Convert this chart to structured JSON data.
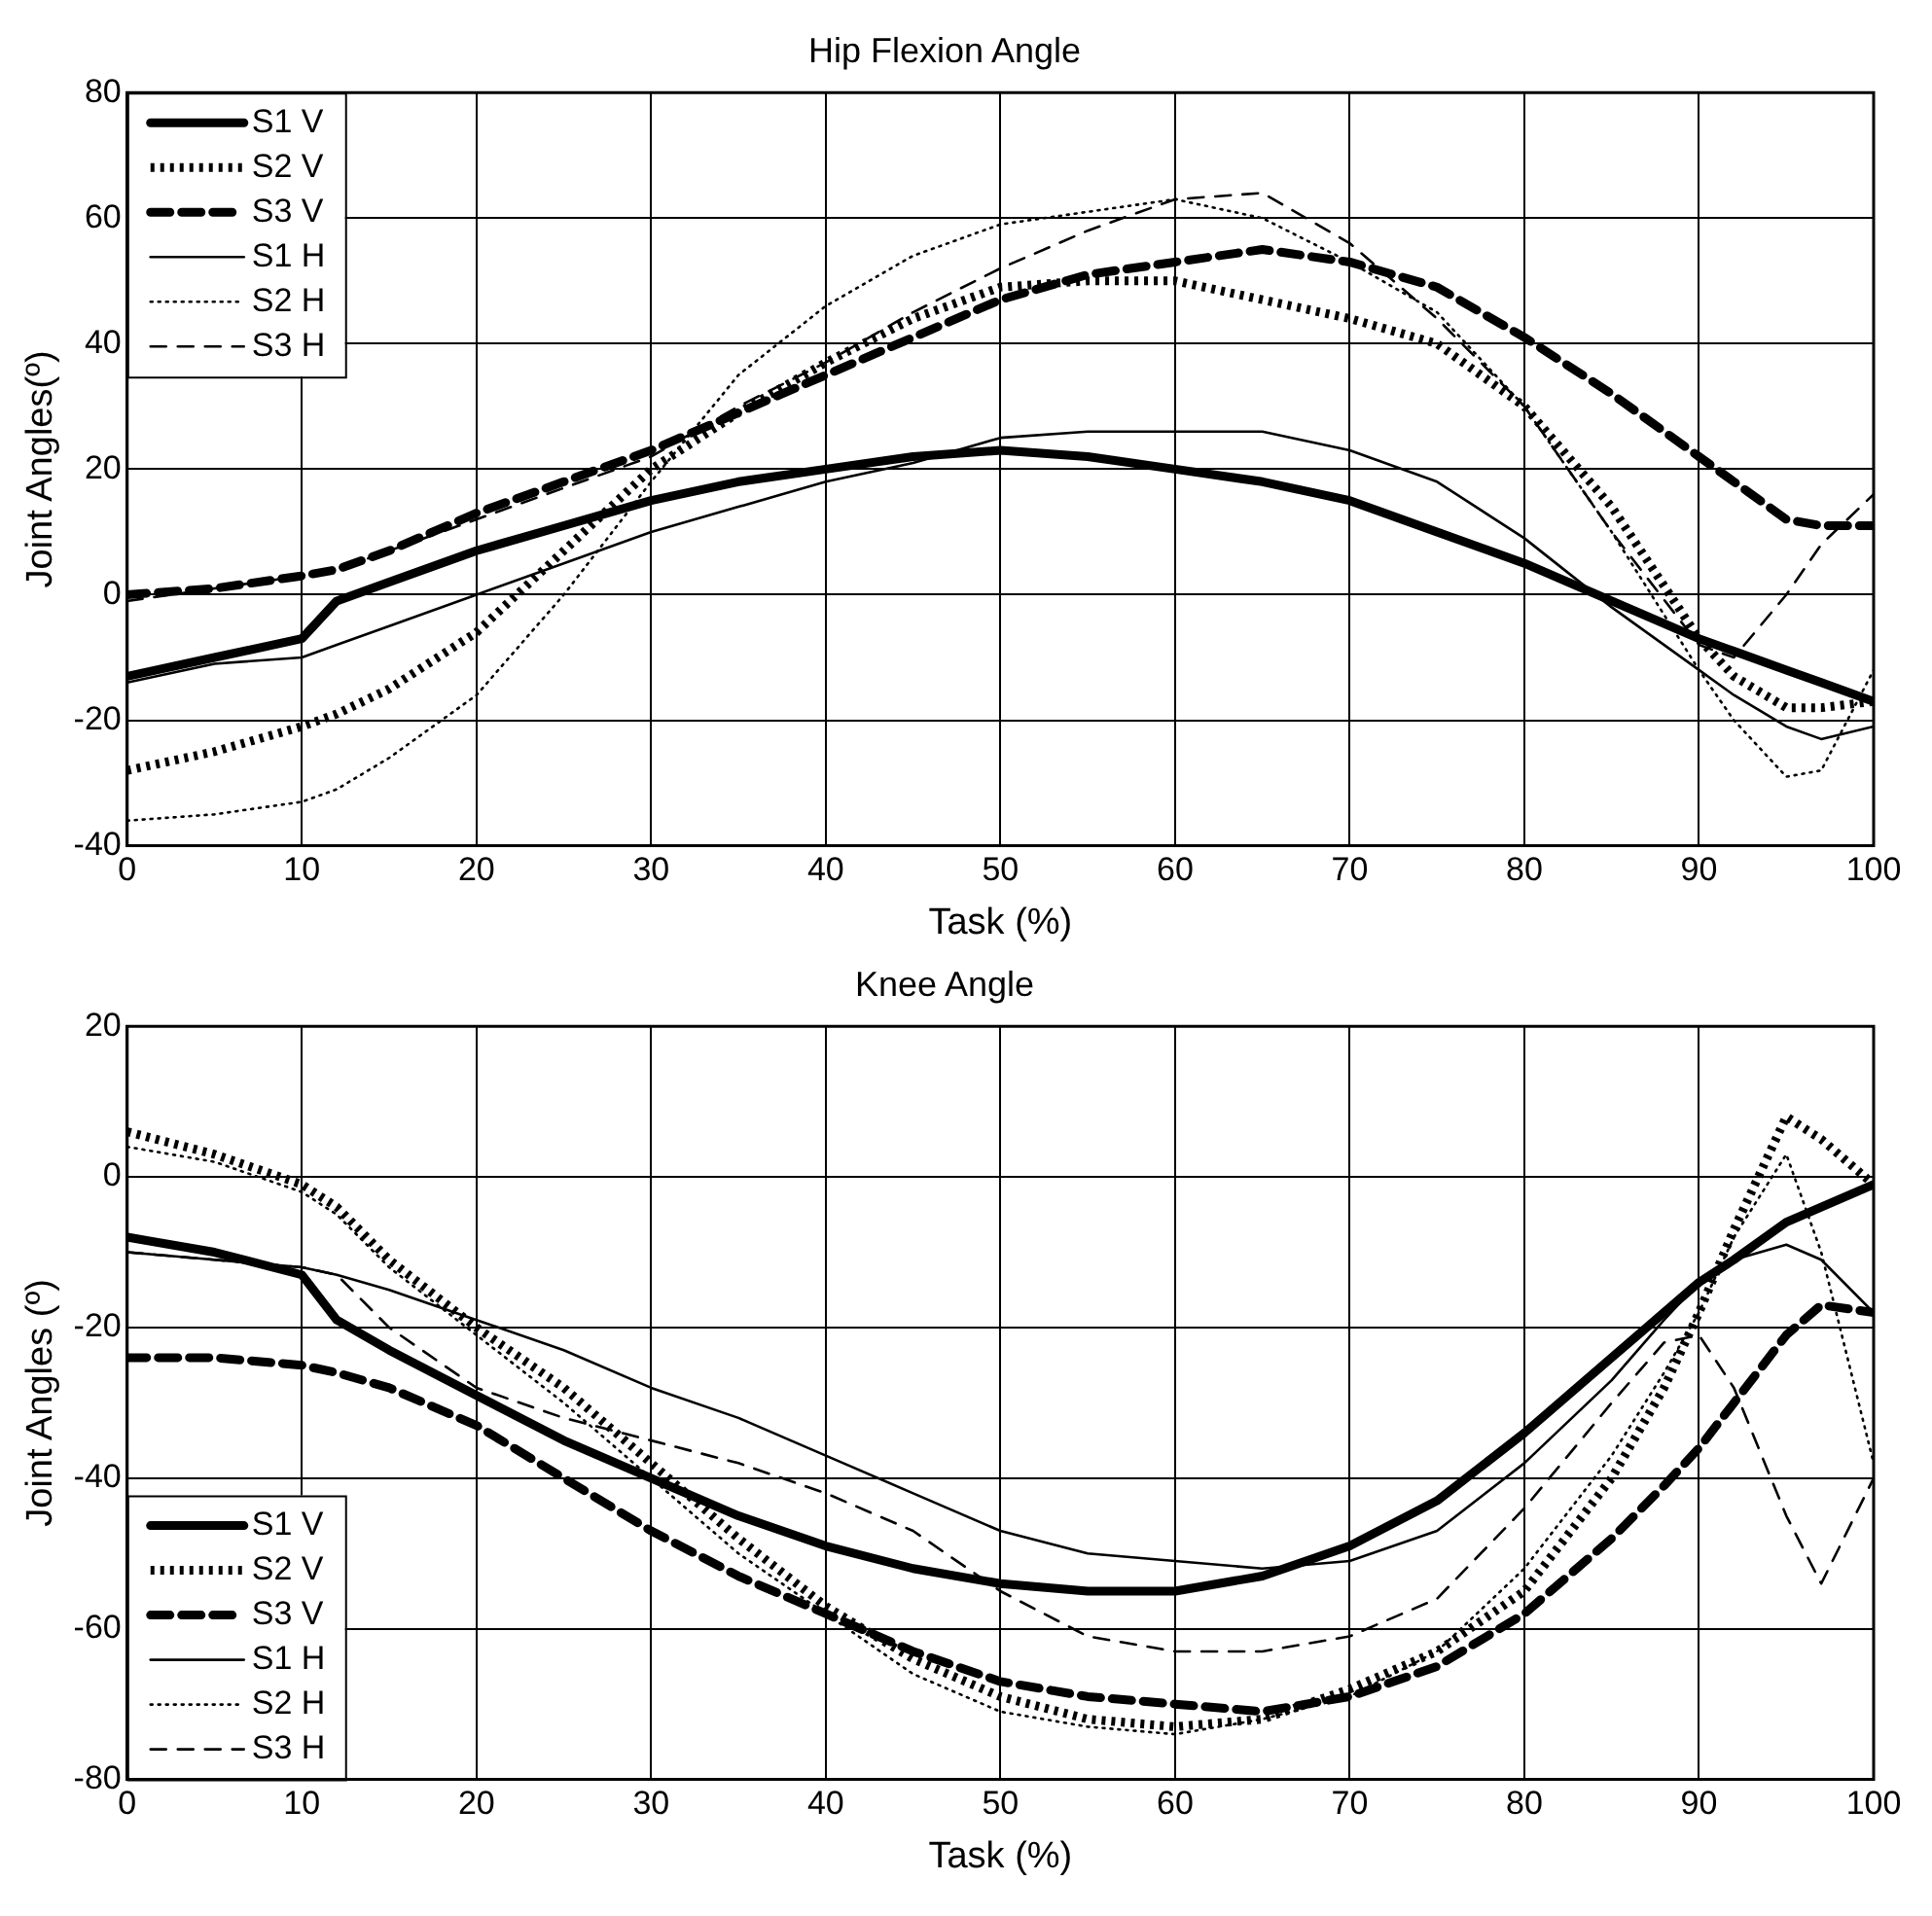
{
  "chart_data": [
    {
      "type": "line",
      "title": "Hip Flexion Angle",
      "xlabel": "Task (%)",
      "ylabel": "Joint Angles(º)",
      "x": [
        0,
        5,
        10,
        12,
        15,
        20,
        25,
        30,
        35,
        40,
        45,
        50,
        55,
        60,
        65,
        70,
        75,
        80,
        85,
        90,
        92,
        95,
        97,
        100
      ],
      "xlim": [
        0,
        100
      ],
      "xticks": [
        0,
        10,
        20,
        30,
        40,
        50,
        60,
        70,
        80,
        90,
        100
      ],
      "ylim": [
        -40,
        80
      ],
      "yticks": [
        -40,
        -20,
        0,
        20,
        40,
        60,
        80
      ],
      "grid": true,
      "legend": "top left",
      "series": [
        {
          "name": "S1 V",
          "color": "#000000",
          "line_style": "solid",
          "values": [
            -13,
            -10,
            -7,
            -1,
            2,
            7,
            11,
            15,
            18,
            20,
            22,
            23,
            22,
            20,
            18,
            15,
            10,
            5,
            -1,
            -7,
            -9,
            -12,
            -14,
            -17
          ]
        },
        {
          "name": "S2 V",
          "color": "#000000",
          "line_style": "dotted",
          "values": [
            -28,
            -25,
            -21,
            -19,
            -15,
            -6,
            7,
            20,
            29,
            37,
            44,
            49,
            50,
            50,
            47,
            44,
            40,
            30,
            14,
            -7,
            -13,
            -18,
            -18,
            -17
          ]
        },
        {
          "name": "S3 V",
          "color": "#000000",
          "line_style": "dashed",
          "values": [
            0,
            1,
            3,
            4,
            7,
            13,
            18,
            23,
            29,
            35,
            41,
            47,
            51,
            53,
            55,
            53,
            49,
            41,
            32,
            22,
            18,
            12,
            11,
            11
          ]
        },
        {
          "name": "S1 H",
          "color": "#000000",
          "line_style": "solid",
          "values": [
            -14,
            -11,
            -10,
            -8,
            -5,
            0,
            5,
            10,
            14,
            18,
            21,
            25,
            26,
            26,
            26,
            23,
            18,
            9,
            -2,
            -12,
            -16,
            -21,
            -23,
            -21
          ]
        },
        {
          "name": "S2 H",
          "color": "#000000",
          "line_style": "dotted",
          "values": [
            -36,
            -35,
            -33,
            -31,
            -26,
            -16,
            0,
            18,
            35,
            46,
            54,
            59,
            61,
            63,
            60,
            53,
            45,
            30,
            10,
            -12,
            -20,
            -29,
            -28,
            -12
          ]
        },
        {
          "name": "S3 H",
          "color": "#000000",
          "line_style": "dashed",
          "values": [
            -1,
            1,
            3,
            4,
            7,
            12,
            17,
            22,
            30,
            37,
            45,
            52,
            58,
            63,
            64,
            56,
            44,
            30,
            10,
            -8,
            -10,
            0,
            8,
            16
          ]
        }
      ]
    },
    {
      "type": "line",
      "title": "Knee Angle",
      "xlabel": "Task (%)",
      "ylabel": "Joint Angles (º)",
      "x": [
        0,
        5,
        10,
        12,
        15,
        20,
        25,
        30,
        35,
        40,
        45,
        50,
        55,
        60,
        65,
        70,
        75,
        80,
        85,
        88,
        90,
        92,
        95,
        97,
        100
      ],
      "xlim": [
        0,
        100
      ],
      "xticks": [
        0,
        10,
        20,
        30,
        40,
        50,
        60,
        70,
        80,
        90,
        100
      ],
      "ylim": [
        -80,
        20
      ],
      "yticks": [
        -80,
        -60,
        -40,
        -20,
        0,
        20
      ],
      "grid": true,
      "legend": "bottom left",
      "series": [
        {
          "name": "S1 V",
          "color": "#000000",
          "line_style": "solid",
          "values": [
            -8,
            -10,
            -13,
            -19,
            -23,
            -29,
            -35,
            -40,
            -45,
            -49,
            -52,
            -54,
            -55,
            -55,
            -53,
            -49,
            -43,
            -34,
            -24,
            -18,
            -14,
            -11,
            -6,
            -4,
            -1
          ]
        },
        {
          "name": "S2 V",
          "color": "#000000",
          "line_style": "dotted",
          "values": [
            6,
            3,
            -1,
            -4,
            -11,
            -20,
            -28,
            -38,
            -48,
            -57,
            -64,
            -69,
            -72,
            -73,
            -72,
            -68,
            -63,
            -55,
            -40,
            -28,
            -18,
            -7,
            8,
            5,
            -1
          ]
        },
        {
          "name": "S3 V",
          "color": "#000000",
          "line_style": "dashed",
          "values": [
            -24,
            -24,
            -25,
            -26,
            -28,
            -33,
            -40,
            -47,
            -53,
            -58,
            -63,
            -67,
            -69,
            -70,
            -71,
            -69,
            -65,
            -58,
            -48,
            -41,
            -36,
            -30,
            -21,
            -17,
            -18
          ]
        },
        {
          "name": "S1 H",
          "color": "#000000",
          "line_style": "solid",
          "values": [
            -10,
            -11,
            -12,
            -13,
            -15,
            -19,
            -23,
            -28,
            -32,
            -37,
            -42,
            -47,
            -50,
            -51,
            -52,
            -51,
            -47,
            -38,
            -27,
            -19,
            -14,
            -11,
            -9,
            -11,
            -18
          ]
        },
        {
          "name": "S2 H",
          "color": "#000000",
          "line_style": "dotted",
          "values": [
            4,
            2,
            -2,
            -5,
            -12,
            -21,
            -30,
            -40,
            -50,
            -58,
            -66,
            -71,
            -73,
            -74,
            -72,
            -69,
            -63,
            -52,
            -37,
            -26,
            -18,
            -8,
            3,
            -10,
            -38
          ]
        },
        {
          "name": "S3 H",
          "color": "#000000",
          "line_style": "dashed",
          "values": [
            -10,
            -11,
            -12,
            -13,
            -20,
            -28,
            -32,
            -35,
            -38,
            -42,
            -47,
            -55,
            -61,
            -63,
            -63,
            -61,
            -56,
            -44,
            -30,
            -22,
            -21,
            -28,
            -45,
            -54,
            -40
          ]
        }
      ]
    }
  ]
}
